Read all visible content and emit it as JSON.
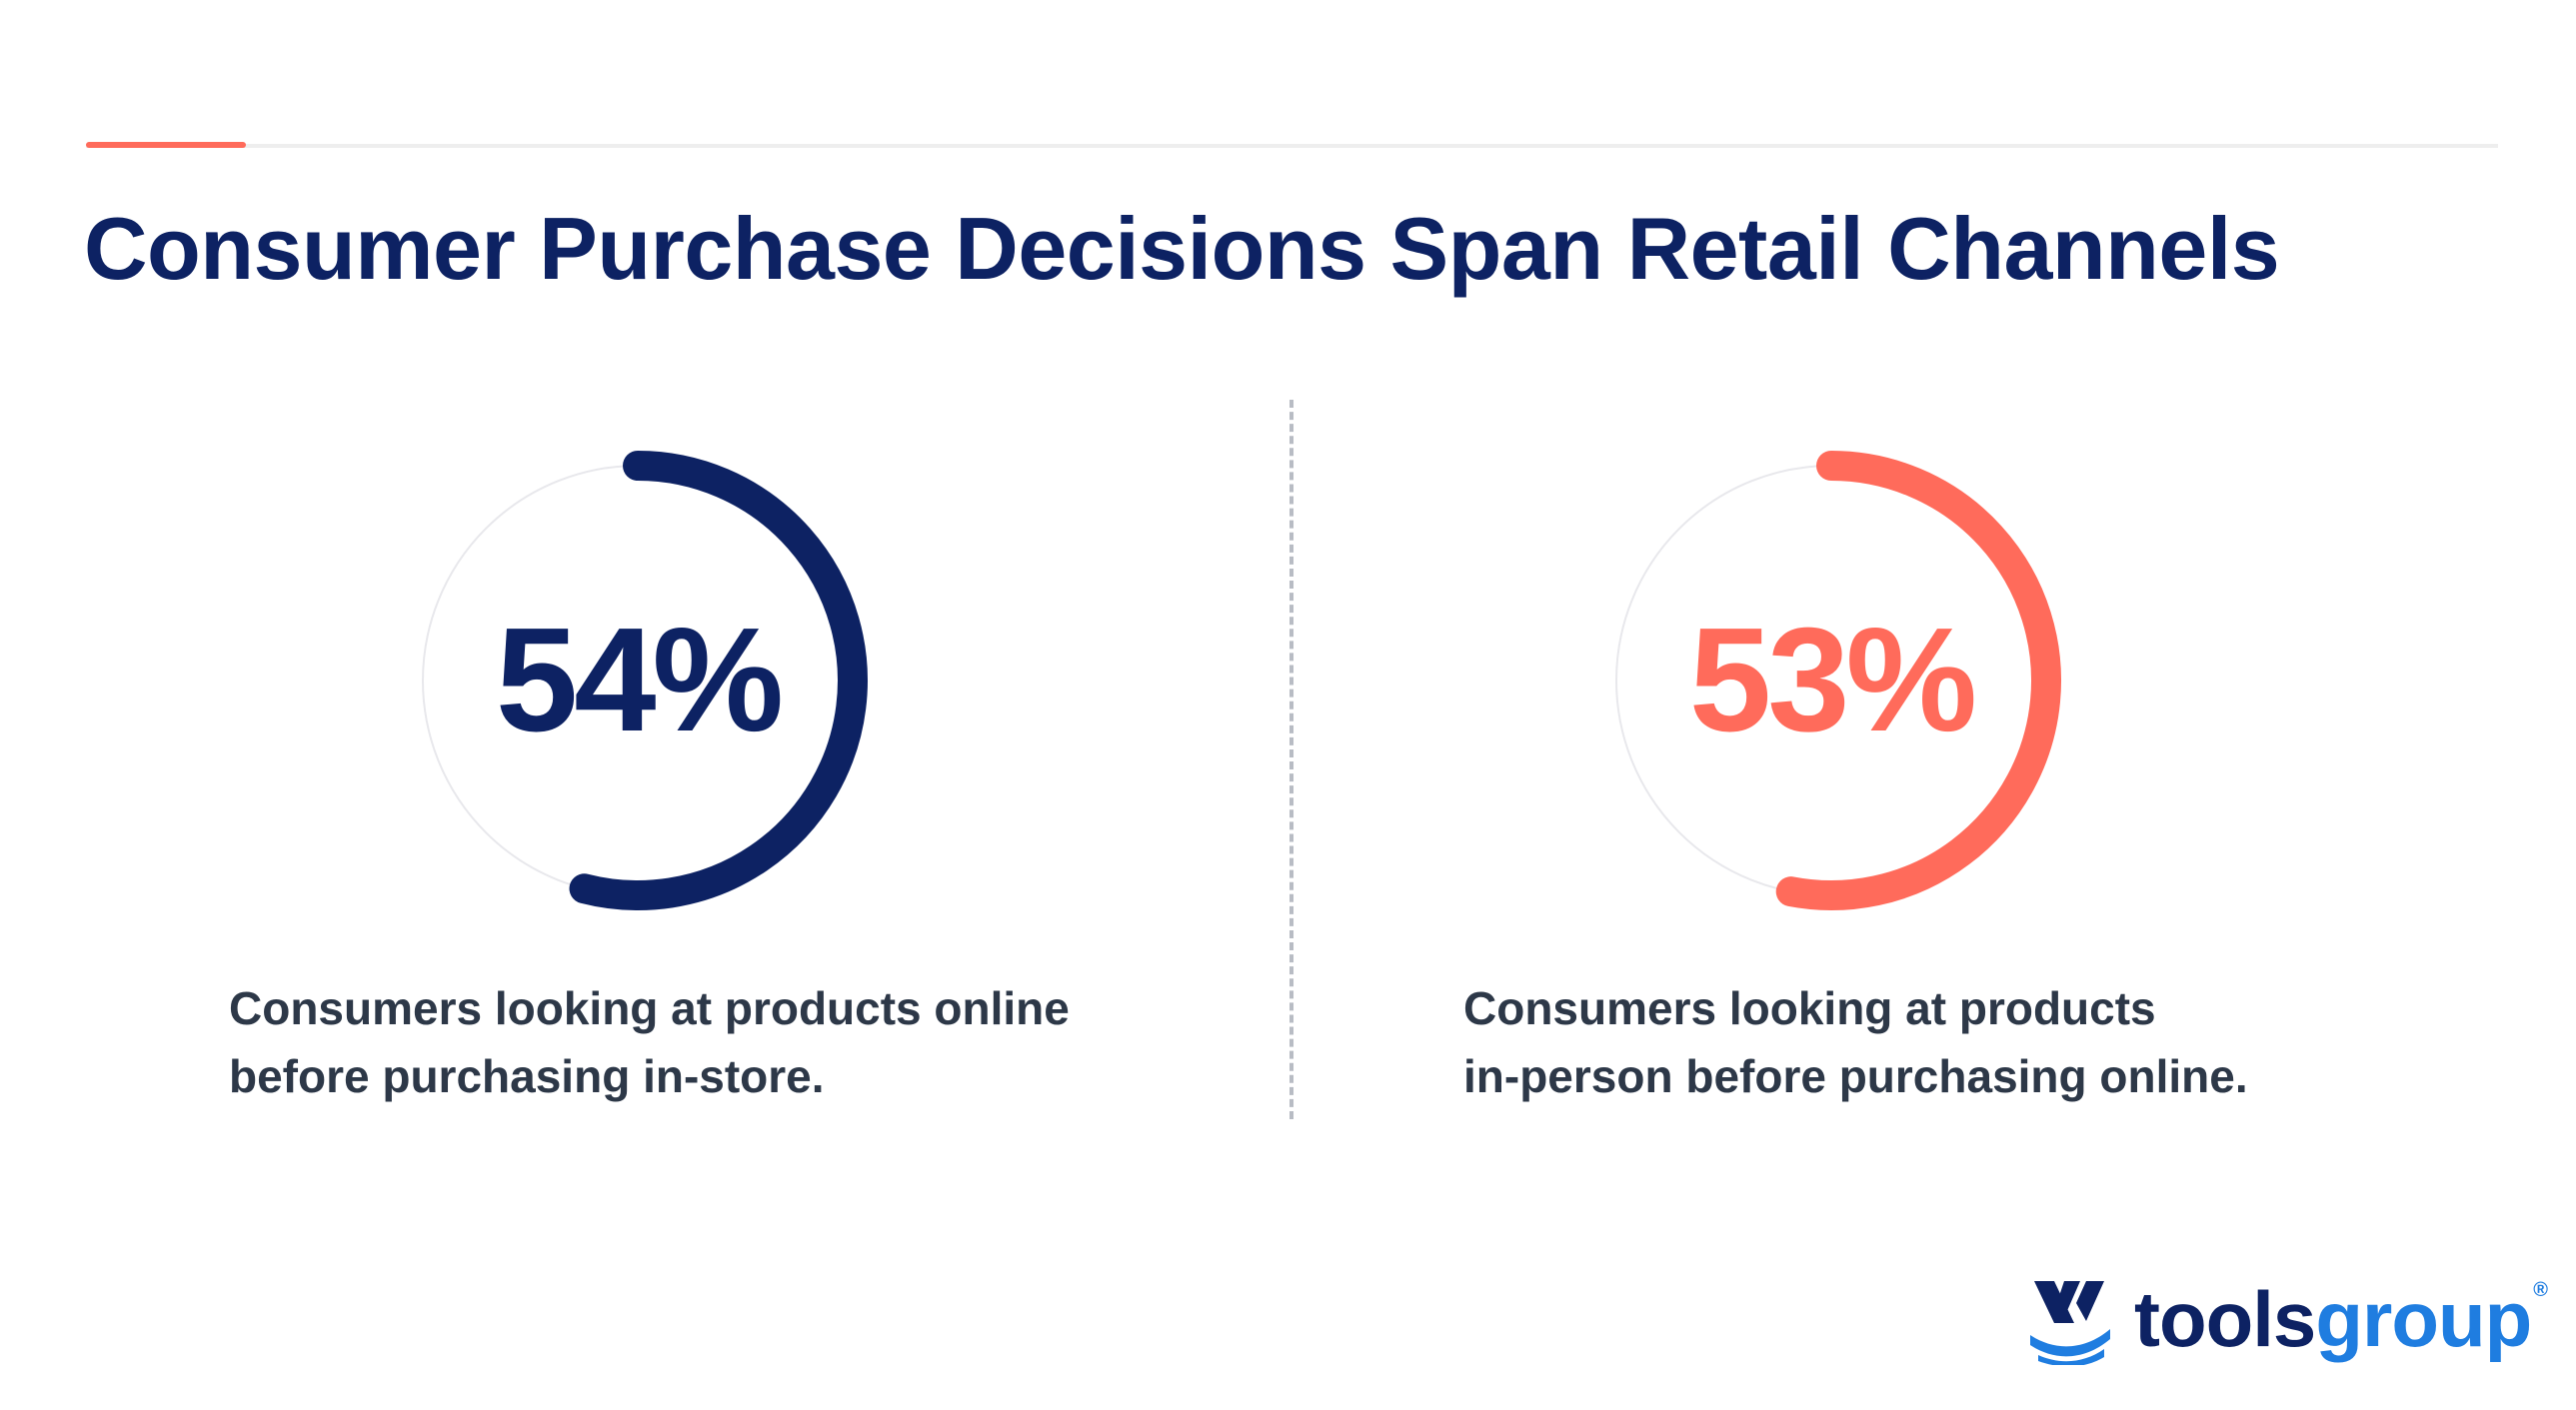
{
  "title": "Consumer Purchase Decisions Span Retail Channels",
  "colors": {
    "navy": "#0d2263",
    "coral": "#ff6b5b",
    "track": "#e8e8ec",
    "blue": "#1f7de0"
  },
  "chart_data": [
    {
      "type": "pie",
      "value": 54,
      "value_label": "54%",
      "caption_lines": [
        "Consumers looking at products online",
        "before purchasing in-store."
      ],
      "color": "#0d2263"
    },
    {
      "type": "pie",
      "value": 53,
      "value_label": "53%",
      "caption_lines": [
        "Consumers looking at products",
        "in-person before purchasing online."
      ],
      "color": "#ff6b5b"
    }
  ],
  "logo": {
    "word1": "tools",
    "word2": "group",
    "mark": "®",
    "icon": "toolsgroup-logo-icon"
  }
}
